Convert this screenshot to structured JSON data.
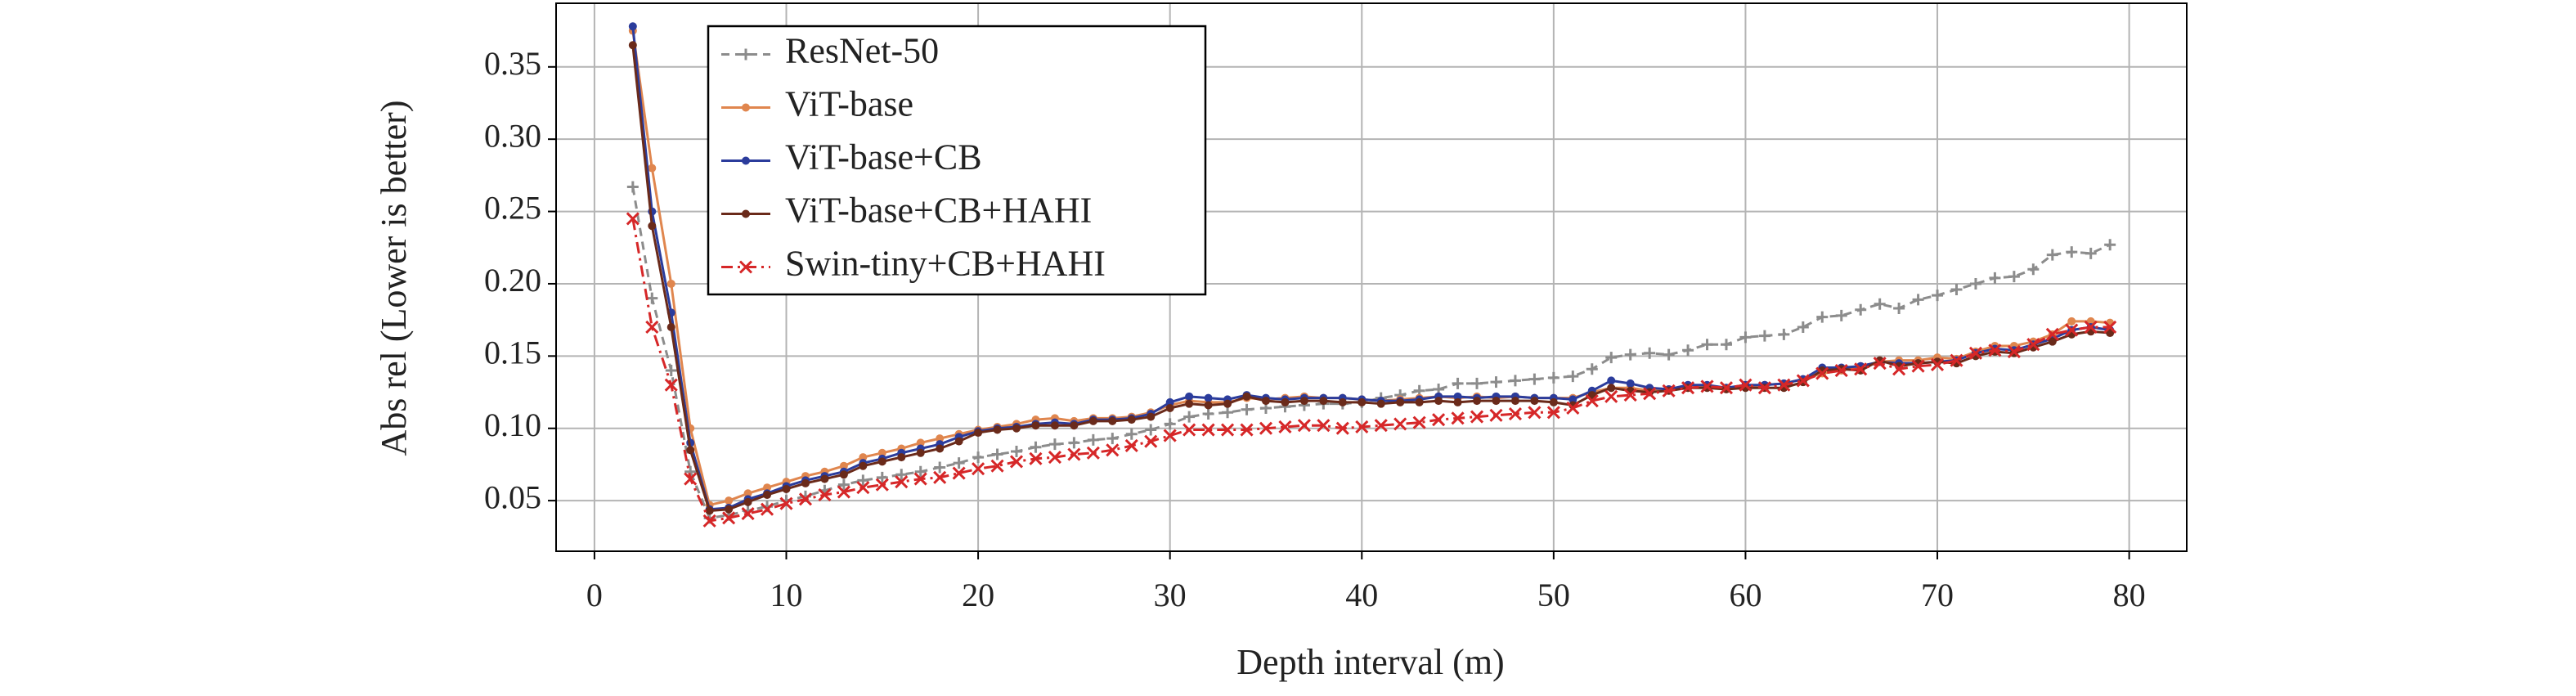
{
  "chart_data": {
    "type": "line",
    "xlabel": "Depth interval (m)",
    "ylabel": "Abs rel (Lower is better)",
    "x": [
      2,
      3,
      4,
      5,
      6,
      7,
      8,
      9,
      10,
      11,
      12,
      13,
      14,
      15,
      16,
      17,
      18,
      19,
      20,
      21,
      22,
      23,
      24,
      25,
      26,
      27,
      28,
      29,
      30,
      31,
      32,
      33,
      34,
      35,
      36,
      37,
      38,
      39,
      40,
      41,
      42,
      43,
      44,
      45,
      46,
      47,
      48,
      49,
      50,
      51,
      52,
      53,
      54,
      55,
      56,
      57,
      58,
      59,
      60,
      61,
      62,
      63,
      64,
      65,
      66,
      67,
      68,
      69,
      70,
      71,
      72,
      73,
      74,
      75,
      76,
      77,
      78,
      79
    ],
    "xlim": [
      -2,
      83
    ],
    "xticks": [
      0,
      10,
      20,
      30,
      40,
      50,
      60,
      70,
      80
    ],
    "ylim": [
      0.015,
      0.394
    ],
    "yticks": [
      0.05,
      {
        "value": 0.1,
        "label": "0.10"
      },
      0.15,
      {
        "value": 0.2,
        "label": "0.20"
      },
      0.25,
      {
        "value": 0.3,
        "label": "0.30"
      },
      0.35
    ],
    "grid": true,
    "legend": "upper left",
    "series": [
      {
        "name": "ResNet-50",
        "color": "#8c8c8c",
        "linestyle": "dashed",
        "marker": "+",
        "values": [
          0.267,
          0.19,
          0.14,
          0.07,
          0.038,
          0.04,
          0.043,
          0.046,
          0.05,
          0.053,
          0.057,
          0.061,
          0.064,
          0.066,
          0.068,
          0.07,
          0.073,
          0.076,
          0.08,
          0.082,
          0.084,
          0.087,
          0.089,
          0.09,
          0.092,
          0.093,
          0.096,
          0.099,
          0.103,
          0.108,
          0.11,
          0.111,
          0.113,
          0.114,
          0.115,
          0.116,
          0.117,
          0.117,
          0.118,
          0.121,
          0.123,
          0.126,
          0.127,
          0.131,
          0.131,
          0.132,
          0.133,
          0.134,
          0.135,
          0.136,
          0.141,
          0.149,
          0.151,
          0.152,
          0.151,
          0.154,
          0.158,
          0.158,
          0.163,
          0.164,
          0.165,
          0.17,
          0.177,
          0.178,
          0.182,
          0.186,
          0.183,
          0.189,
          0.192,
          0.196,
          0.2,
          0.204,
          0.205,
          0.21,
          0.22,
          0.222,
          0.221,
          0.227
        ]
      },
      {
        "name": "ViT-base",
        "color": "#e0864e",
        "linestyle": "solid",
        "marker": "o",
        "values": [
          0.375,
          0.28,
          0.2,
          0.1,
          0.047,
          0.05,
          0.055,
          0.059,
          0.063,
          0.067,
          0.07,
          0.074,
          0.08,
          0.083,
          0.086,
          0.09,
          0.093,
          0.096,
          0.099,
          0.101,
          0.103,
          0.106,
          0.107,
          0.105,
          0.107,
          0.107,
          0.108,
          0.111,
          0.116,
          0.119,
          0.118,
          0.118,
          0.121,
          0.12,
          0.121,
          0.122,
          0.121,
          0.121,
          0.12,
          0.119,
          0.12,
          0.121,
          0.122,
          0.121,
          0.122,
          0.121,
          0.122,
          0.121,
          0.121,
          0.121,
          0.125,
          0.128,
          0.128,
          0.126,
          0.127,
          0.128,
          0.129,
          0.128,
          0.129,
          0.13,
          0.131,
          0.134,
          0.138,
          0.14,
          0.143,
          0.146,
          0.147,
          0.147,
          0.149,
          0.148,
          0.153,
          0.157,
          0.157,
          0.16,
          0.165,
          0.174,
          0.174,
          0.173
        ]
      },
      {
        "name": "ViT-base+CB",
        "color": "#2b3c9c",
        "linestyle": "solid",
        "marker": "o",
        "values": [
          0.378,
          0.25,
          0.18,
          0.09,
          0.044,
          0.045,
          0.051,
          0.055,
          0.06,
          0.064,
          0.067,
          0.07,
          0.076,
          0.079,
          0.083,
          0.086,
          0.089,
          0.094,
          0.098,
          0.1,
          0.101,
          0.103,
          0.104,
          0.103,
          0.106,
          0.106,
          0.107,
          0.11,
          0.118,
          0.122,
          0.121,
          0.12,
          0.123,
          0.121,
          0.12,
          0.121,
          0.121,
          0.121,
          0.12,
          0.119,
          0.119,
          0.12,
          0.122,
          0.122,
          0.121,
          0.122,
          0.122,
          0.121,
          0.121,
          0.12,
          0.126,
          0.133,
          0.131,
          0.128,
          0.127,
          0.13,
          0.13,
          0.128,
          0.13,
          0.13,
          0.131,
          0.134,
          0.142,
          0.142,
          0.143,
          0.146,
          0.145,
          0.145,
          0.146,
          0.147,
          0.152,
          0.155,
          0.154,
          0.158,
          0.162,
          0.168,
          0.17,
          0.168
        ]
      },
      {
        "name": "ViT-base+CB+HAHI",
        "color": "#6a2a1a",
        "linestyle": "solid",
        "marker": "o",
        "values": [
          0.365,
          0.24,
          0.17,
          0.085,
          0.043,
          0.044,
          0.049,
          0.054,
          0.058,
          0.062,
          0.065,
          0.068,
          0.074,
          0.077,
          0.08,
          0.083,
          0.086,
          0.091,
          0.097,
          0.099,
          0.1,
          0.102,
          0.102,
          0.102,
          0.105,
          0.105,
          0.106,
          0.108,
          0.114,
          0.117,
          0.116,
          0.117,
          0.122,
          0.119,
          0.118,
          0.119,
          0.119,
          0.118,
          0.118,
          0.117,
          0.118,
          0.118,
          0.119,
          0.118,
          0.119,
          0.119,
          0.119,
          0.119,
          0.118,
          0.116,
          0.123,
          0.128,
          0.126,
          0.125,
          0.126,
          0.128,
          0.128,
          0.127,
          0.128,
          0.128,
          0.128,
          0.132,
          0.14,
          0.141,
          0.14,
          0.147,
          0.143,
          0.145,
          0.146,
          0.145,
          0.15,
          0.153,
          0.152,
          0.156,
          0.16,
          0.165,
          0.167,
          0.166
        ]
      },
      {
        "name": "Swin-tiny+CB+HAHI",
        "color": "#d62728",
        "linestyle": "dashdot",
        "marker": "x",
        "values": [
          0.245,
          0.17,
          0.13,
          0.065,
          0.036,
          0.038,
          0.041,
          0.044,
          0.048,
          0.051,
          0.054,
          0.056,
          0.059,
          0.061,
          0.063,
          0.065,
          0.066,
          0.069,
          0.072,
          0.074,
          0.077,
          0.079,
          0.08,
          0.082,
          0.083,
          0.085,
          0.088,
          0.091,
          0.095,
          0.099,
          0.099,
          0.099,
          0.099,
          0.1,
          0.101,
          0.102,
          0.102,
          0.1,
          0.101,
          0.102,
          0.103,
          0.104,
          0.106,
          0.107,
          0.108,
          0.109,
          0.11,
          0.111,
          0.111,
          0.114,
          0.119,
          0.122,
          0.123,
          0.124,
          0.126,
          0.128,
          0.129,
          0.128,
          0.13,
          0.128,
          0.13,
          0.133,
          0.138,
          0.14,
          0.141,
          0.145,
          0.141,
          0.143,
          0.144,
          0.147,
          0.152,
          0.154,
          0.153,
          0.158,
          0.165,
          0.168,
          0.17,
          0.17
        ]
      }
    ]
  }
}
